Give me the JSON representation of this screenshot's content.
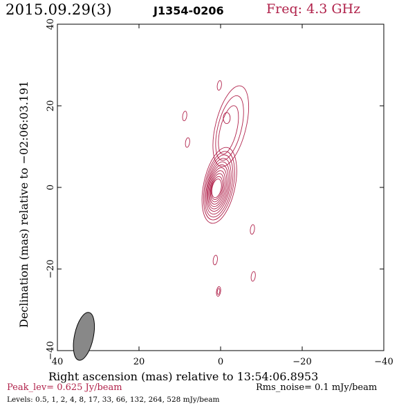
{
  "header": {
    "date": "2015.09.29(3)",
    "source": "J1354-0206",
    "freq": "Freq: 4.3 GHz"
  },
  "footer": {
    "peak": "Peak_lev=  0.625 Jy/beam",
    "rms": "Rms_noise=  0.1 mJy/beam",
    "levels": "Levels: 0.5,   1,   2,   4,   8,  17,  33,  66, 132, 264, 528 mJy/beam"
  },
  "colors": {
    "accent": "#b0214a",
    "beam_fill": "#888888"
  },
  "chart_data": {
    "type": "contour",
    "xlabel": "Right ascension (mas) relative to 13:54:06.8953",
    "ylabel": "Declination (mas) relative to −02:06:03.191",
    "xlim": [
      40,
      -40
    ],
    "ylim": [
      -40,
      40
    ],
    "xticks": [
      40,
      20,
      0,
      -20,
      -40
    ],
    "yticks": [
      -40,
      -20,
      0,
      20,
      40
    ],
    "xtick_labels": [
      "40",
      "20",
      "0",
      "−20",
      "−40"
    ],
    "ytick_labels": [
      "−40",
      "−20",
      "0",
      "20",
      "40"
    ],
    "contour_levels_mJy": [
      0.5,
      1,
      2,
      4,
      8,
      17,
      33,
      66,
      132,
      264,
      528
    ],
    "core": {
      "x": 0.3,
      "y": 0.5,
      "peak_Jy_per_beam": 0.625
    },
    "components": [
      {
        "x": 0.3,
        "y": 25,
        "level": 1
      },
      {
        "x": 8.8,
        "y": 17.5,
        "level": 1
      },
      {
        "x": 8.1,
        "y": 11,
        "level": 1
      },
      {
        "x": -7.8,
        "y": -10.3,
        "level": 1
      },
      {
        "x": -8,
        "y": -21.8,
        "level": 1
      },
      {
        "x": 1.3,
        "y": -17.8,
        "level": 1
      },
      {
        "x": 0.5,
        "y": -25.5,
        "level": 2
      }
    ],
    "beam": {
      "x": 33.5,
      "y": -36.5,
      "major_mas": 4.6,
      "minor_mas": 2.1,
      "pa_deg": 12
    }
  }
}
